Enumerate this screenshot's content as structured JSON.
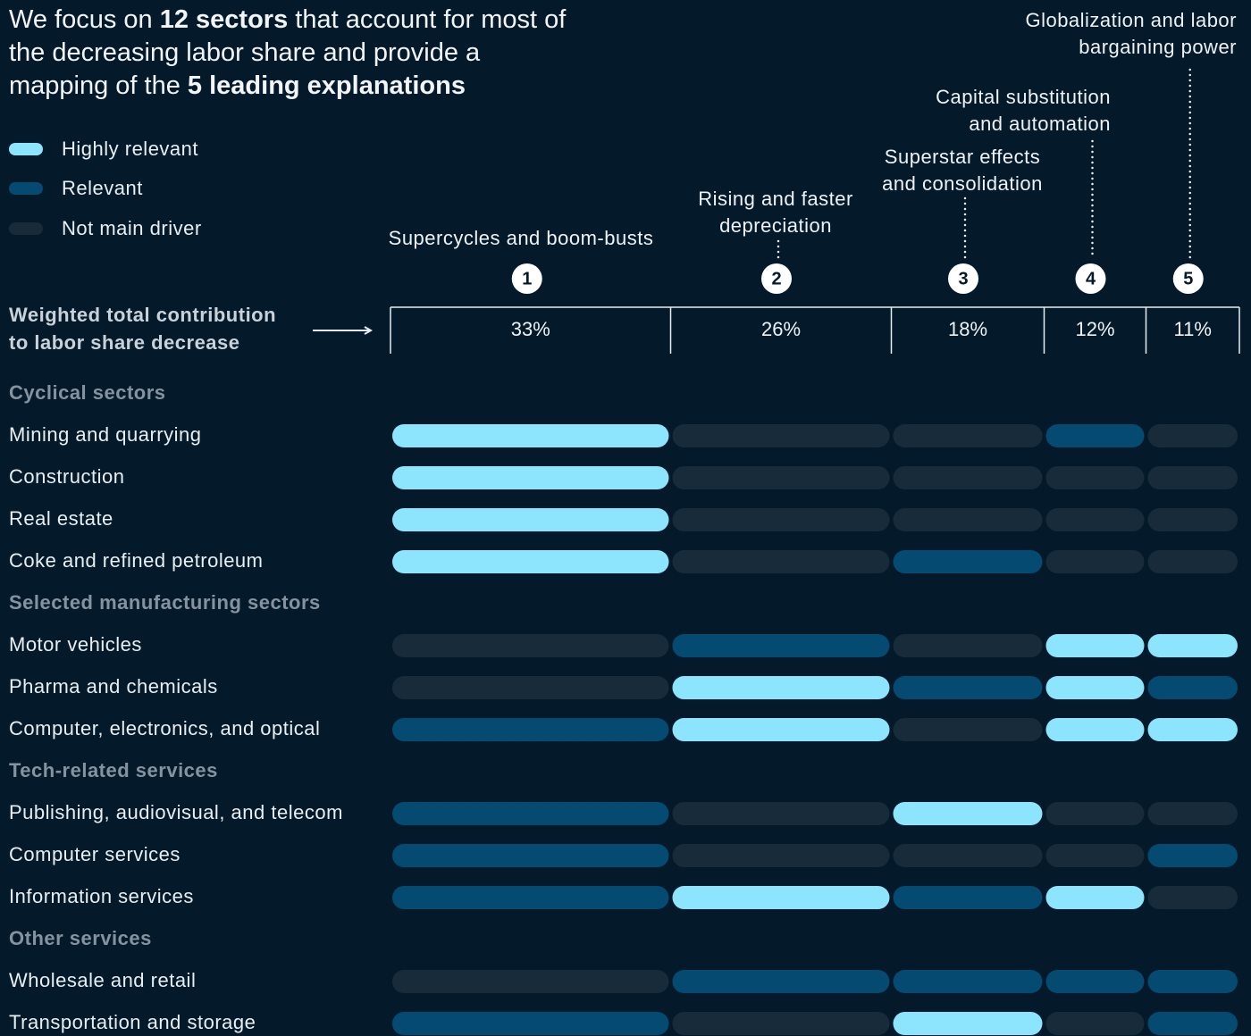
{
  "chart_data": {
    "type": "matrix",
    "title": [
      {
        "text": "We focus on ",
        "bold": false
      },
      {
        "text": "12 sectors",
        "bold": true
      },
      {
        "text": " that account for most of the decreasing labor share and provide a mapping of the ",
        "bold": false
      },
      {
        "text": "5 leading explanations",
        "bold": true
      }
    ],
    "legend": [
      {
        "name": "Highly relevant",
        "color": "#8de4fd"
      },
      {
        "name": "Relevant",
        "color": "#054a70"
      },
      {
        "name": "Not main driver",
        "color": "#182b3a"
      }
    ],
    "explanations": [
      "Supercycles and boom-busts",
      "Rising and faster depreciation",
      "Superstar effects and consolidation",
      "Capital substitution and automation",
      "Globalization and labor bargaining power"
    ],
    "explanation_numbers": [
      1,
      2,
      3,
      4,
      5
    ],
    "values_label": "Weighted total contribution to labor share decrease",
    "values": [
      33,
      26,
      18,
      12,
      11
    ],
    "value_labels": [
      "33%",
      "26%",
      "18%",
      "12%",
      "11%"
    ],
    "groups": [
      {
        "name": "Cyclical sectors",
        "rows": [
          {
            "name": "Mining and quarrying",
            "levels": [
              0,
              2,
              2,
              1,
              2
            ]
          },
          {
            "name": "Construction",
            "levels": [
              0,
              2,
              2,
              2,
              2
            ]
          },
          {
            "name": "Real estate",
            "levels": [
              0,
              2,
              2,
              2,
              2
            ]
          },
          {
            "name": "Coke and refined petroleum",
            "levels": [
              0,
              2,
              1,
              2,
              2
            ]
          }
        ]
      },
      {
        "name": "Selected manufacturing sectors",
        "rows": [
          {
            "name": "Motor vehicles",
            "levels": [
              2,
              1,
              2,
              0,
              0
            ]
          },
          {
            "name": "Pharma and chemicals",
            "levels": [
              2,
              0,
              1,
              0,
              1
            ]
          },
          {
            "name": "Computer, electronics, and optical",
            "levels": [
              1,
              0,
              2,
              0,
              0
            ]
          }
        ]
      },
      {
        "name": "Tech-related services",
        "rows": [
          {
            "name": "Publishing, audiovisual, and telecom",
            "levels": [
              1,
              2,
              0,
              2,
              2
            ]
          },
          {
            "name": "Computer services",
            "levels": [
              1,
              2,
              2,
              2,
              1
            ]
          },
          {
            "name": "Information services",
            "levels": [
              1,
              0,
              1,
              0,
              2
            ]
          }
        ]
      },
      {
        "name": "Other services",
        "rows": [
          {
            "name": "Wholesale and retail",
            "levels": [
              2,
              1,
              1,
              1,
              1
            ]
          },
          {
            "name": "Transportation and storage",
            "levels": [
              1,
              2,
              0,
              2,
              1
            ]
          }
        ]
      }
    ]
  }
}
